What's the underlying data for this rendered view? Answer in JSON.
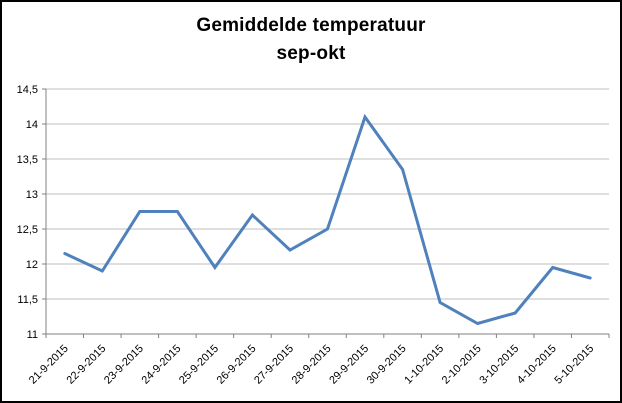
{
  "chart": {
    "title": "Gemiddelde temperatuur",
    "subtitle": "sep-okt"
  },
  "chart_data": {
    "type": "line",
    "title": "Gemiddelde temperatuur sep-okt",
    "categories": [
      "21-9-2015",
      "22-9-2015",
      "23-9-2015",
      "24-9-2015",
      "25-9-2015",
      "26-9-2015",
      "27-9-2015",
      "28-9-2015",
      "29-9-2015",
      "30-9-2015",
      "1-10-2015",
      "2-10-2015",
      "3-10-2015",
      "4-10-2015",
      "5-10-2015"
    ],
    "values": [
      12.15,
      11.9,
      12.75,
      12.75,
      11.95,
      12.7,
      12.2,
      12.5,
      14.1,
      13.35,
      11.45,
      11.15,
      11.3,
      11.95,
      11.8
    ],
    "xlabel": "",
    "ylabel": "",
    "ylim": [
      11,
      14.5
    ],
    "ytick_step": 0.5,
    "ytick_labels": [
      "14,5",
      "14",
      "13,5",
      "13",
      "12,5",
      "12",
      "11,5",
      "11"
    ],
    "grid": true,
    "legend": "none",
    "line_color": "#4F81BD",
    "gridline_color": "#BFBFBF",
    "axis_color": "#808080",
    "x_label_rotation_deg": -45
  }
}
